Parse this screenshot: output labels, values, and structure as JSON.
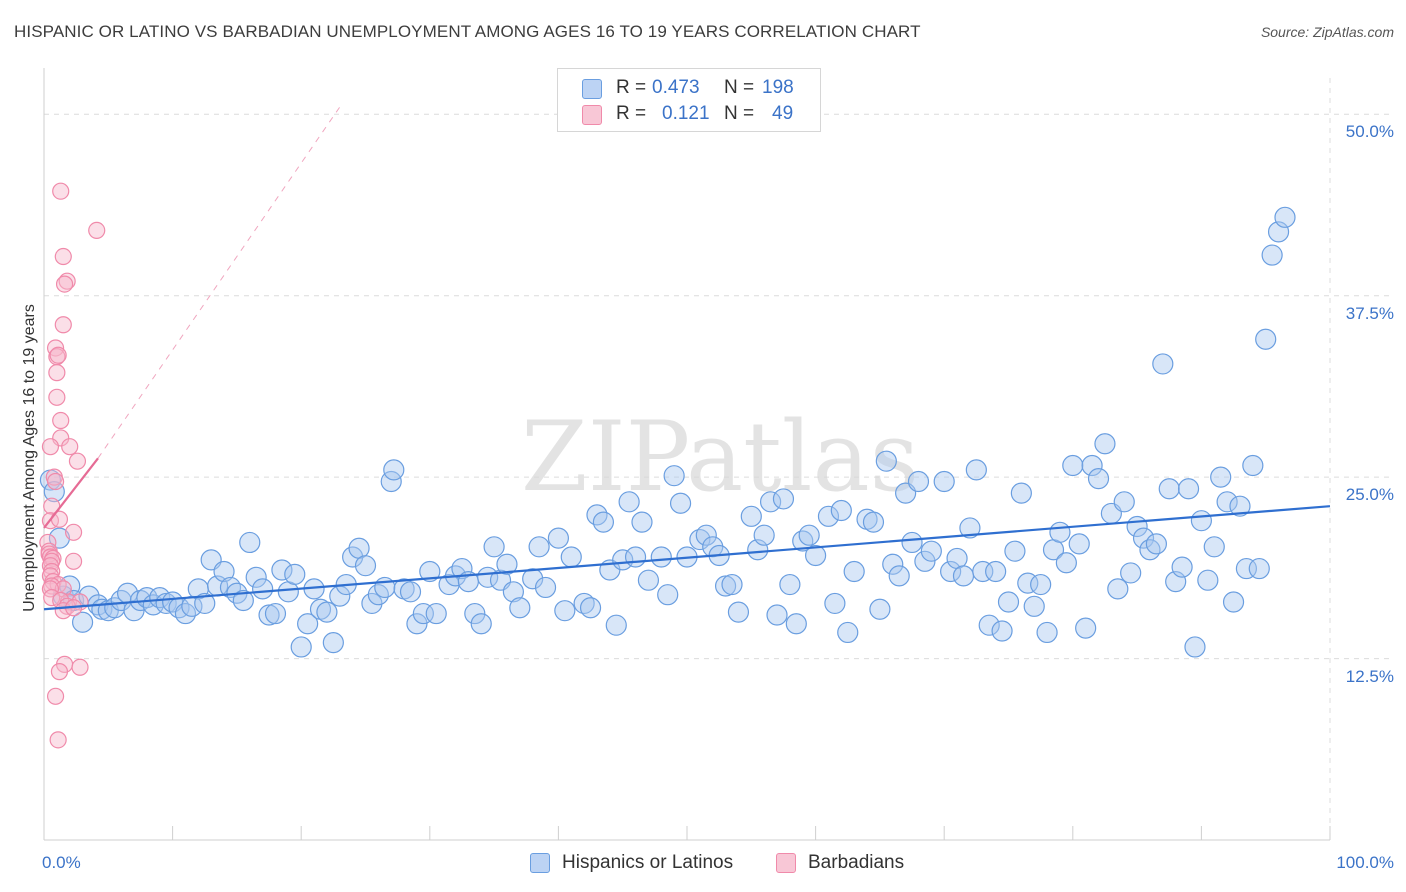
{
  "title": "HISPANIC OR LATINO VS BARBADIAN UNEMPLOYMENT AMONG AGES 16 TO 19 YEARS CORRELATION CHART",
  "source": "Source: ZipAtlas.com",
  "watermark": "ZIPatlas",
  "legend_top": {
    "rows": [
      {
        "r_label": "R =",
        "r_value": "0.473",
        "n_label": "N =",
        "n_value": "198",
        "color": "#a9c8f0"
      },
      {
        "r_label": "R =",
        "r_value": "0.121",
        "n_label": "N =",
        "n_value": "49",
        "color": "#f6b8cb"
      }
    ]
  },
  "legend_bottom": {
    "items": [
      {
        "label": "Hispanics or Latinos",
        "color": "#a9c8f0"
      },
      {
        "label": "Barbadians",
        "color": "#f6b8cb"
      }
    ]
  },
  "chart_data": {
    "type": "scatter",
    "title": "HISPANIC OR LATINO VS BARBADIAN UNEMPLOYMENT AMONG AGES 16 TO 19 YEARS CORRELATION CHART",
    "xlabel": "",
    "ylabel": "Unemployment Among Ages 16 to 19 years",
    "xlim": [
      0,
      100
    ],
    "ylim": [
      0,
      52.5
    ],
    "x_tick_labels": [
      "0.0%",
      "100.0%"
    ],
    "y_ticks": [
      12.5,
      25.0,
      37.5,
      50.0
    ],
    "y_tick_labels": [
      "12.5%",
      "25.0%",
      "37.5%",
      "50.0%"
    ],
    "grid": true,
    "legend": "top-center",
    "series": [
      {
        "name": "Hispanics or Latinos",
        "color": "#6a9ee0",
        "trend": {
          "x0": 0,
          "y0": 15.9,
          "x1": 100,
          "y1": 23.0
        },
        "points": [
          [
            0.5,
            24.8
          ],
          [
            0.8,
            24.0
          ],
          [
            1.2,
            20.8
          ],
          [
            1.5,
            16.8
          ],
          [
            2.0,
            17.5
          ],
          [
            2.3,
            16.5
          ],
          [
            3.0,
            15.0
          ],
          [
            3.5,
            16.8
          ],
          [
            4.2,
            16.2
          ],
          [
            4.5,
            15.9
          ],
          [
            5.0,
            15.8
          ],
          [
            5.5,
            16.0
          ],
          [
            6.0,
            16.5
          ],
          [
            6.5,
            17.0
          ],
          [
            7.0,
            15.8
          ],
          [
            7.5,
            16.5
          ],
          [
            8.0,
            16.7
          ],
          [
            8.5,
            16.2
          ],
          [
            9.0,
            16.7
          ],
          [
            9.5,
            16.3
          ],
          [
            10.0,
            16.4
          ],
          [
            10.5,
            16.0
          ],
          [
            11.0,
            15.6
          ],
          [
            11.5,
            16.1
          ],
          [
            12.0,
            17.3
          ],
          [
            12.5,
            16.3
          ],
          [
            13.0,
            19.3
          ],
          [
            13.5,
            17.5
          ],
          [
            14.0,
            18.5
          ],
          [
            14.5,
            17.4
          ],
          [
            15.0,
            17.0
          ],
          [
            15.5,
            16.5
          ],
          [
            16.0,
            20.5
          ],
          [
            16.5,
            18.1
          ],
          [
            17.0,
            17.3
          ],
          [
            17.5,
            15.5
          ],
          [
            18.0,
            15.6
          ],
          [
            18.5,
            18.6
          ],
          [
            19.0,
            17.1
          ],
          [
            19.5,
            18.3
          ],
          [
            20.0,
            13.3
          ],
          [
            20.5,
            14.9
          ],
          [
            21.0,
            17.3
          ],
          [
            21.5,
            15.9
          ],
          [
            22.0,
            15.7
          ],
          [
            22.5,
            13.6
          ],
          [
            23.0,
            16.8
          ],
          [
            23.5,
            17.6
          ],
          [
            24.0,
            19.5
          ],
          [
            24.5,
            20.1
          ],
          [
            25.0,
            18.9
          ],
          [
            25.5,
            16.3
          ],
          [
            26.0,
            16.9
          ],
          [
            26.5,
            17.4
          ],
          [
            27.0,
            24.7
          ],
          [
            27.2,
            25.5
          ],
          [
            28.0,
            17.3
          ],
          [
            28.5,
            17.1
          ],
          [
            29.0,
            14.9
          ],
          [
            29.5,
            15.6
          ],
          [
            30.0,
            18.5
          ],
          [
            30.5,
            15.6
          ],
          [
            31.5,
            17.6
          ],
          [
            32.0,
            18.2
          ],
          [
            32.5,
            18.7
          ],
          [
            33.0,
            17.8
          ],
          [
            33.5,
            15.6
          ],
          [
            34.0,
            14.9
          ],
          [
            34.5,
            18.1
          ],
          [
            35.0,
            20.2
          ],
          [
            35.5,
            17.9
          ],
          [
            36.0,
            19.0
          ],
          [
            36.5,
            17.1
          ],
          [
            37.0,
            16.0
          ],
          [
            38.0,
            18.0
          ],
          [
            38.5,
            20.2
          ],
          [
            39.0,
            17.4
          ],
          [
            40.0,
            20.8
          ],
          [
            40.5,
            15.8
          ],
          [
            41.0,
            19.5
          ],
          [
            42.0,
            16.3
          ],
          [
            42.5,
            16.0
          ],
          [
            43.0,
            22.4
          ],
          [
            43.5,
            21.9
          ],
          [
            44.0,
            18.6
          ],
          [
            44.5,
            14.8
          ],
          [
            45.0,
            19.3
          ],
          [
            45.5,
            23.3
          ],
          [
            46.0,
            19.5
          ],
          [
            46.5,
            21.9
          ],
          [
            47.0,
            17.9
          ],
          [
            48.0,
            19.5
          ],
          [
            48.5,
            16.9
          ],
          [
            49.0,
            25.1
          ],
          [
            49.5,
            23.2
          ],
          [
            50.0,
            19.5
          ],
          [
            51.0,
            20.7
          ],
          [
            51.5,
            21.0
          ],
          [
            52.0,
            20.2
          ],
          [
            52.5,
            19.6
          ],
          [
            53.0,
            17.5
          ],
          [
            53.5,
            17.6
          ],
          [
            54.0,
            15.7
          ],
          [
            55.0,
            22.3
          ],
          [
            55.5,
            20.0
          ],
          [
            56.0,
            21.0
          ],
          [
            56.5,
            23.3
          ],
          [
            57.0,
            15.5
          ],
          [
            57.5,
            23.5
          ],
          [
            58.0,
            17.6
          ],
          [
            58.5,
            14.9
          ],
          [
            59.0,
            20.6
          ],
          [
            59.5,
            21.0
          ],
          [
            60.0,
            19.6
          ],
          [
            61.0,
            22.3
          ],
          [
            61.5,
            16.3
          ],
          [
            62.0,
            22.7
          ],
          [
            62.5,
            14.3
          ],
          [
            63.0,
            18.5
          ],
          [
            64.0,
            22.1
          ],
          [
            64.5,
            21.9
          ],
          [
            65.0,
            15.9
          ],
          [
            65.5,
            26.1
          ],
          [
            66.0,
            19.0
          ],
          [
            66.5,
            18.2
          ],
          [
            67.0,
            23.9
          ],
          [
            67.5,
            20.5
          ],
          [
            68.0,
            24.7
          ],
          [
            68.5,
            19.2
          ],
          [
            69.0,
            19.9
          ],
          [
            70.0,
            24.7
          ],
          [
            70.5,
            18.5
          ],
          [
            71.0,
            19.4
          ],
          [
            71.5,
            18.2
          ],
          [
            72.0,
            21.5
          ],
          [
            72.5,
            25.5
          ],
          [
            73.0,
            18.5
          ],
          [
            73.5,
            14.8
          ],
          [
            74.0,
            18.5
          ],
          [
            74.5,
            14.4
          ],
          [
            75.0,
            16.4
          ],
          [
            75.5,
            19.9
          ],
          [
            76.0,
            23.9
          ],
          [
            76.5,
            17.7
          ],
          [
            77.0,
            16.1
          ],
          [
            77.5,
            17.6
          ],
          [
            78.0,
            14.3
          ],
          [
            78.5,
            20.0
          ],
          [
            79.0,
            21.2
          ],
          [
            79.5,
            19.1
          ],
          [
            80.0,
            25.8
          ],
          [
            80.5,
            20.4
          ],
          [
            81.0,
            14.6
          ],
          [
            81.5,
            25.8
          ],
          [
            82.0,
            24.9
          ],
          [
            82.5,
            27.3
          ],
          [
            83.0,
            22.5
          ],
          [
            83.5,
            17.3
          ],
          [
            84.0,
            23.3
          ],
          [
            84.5,
            18.4
          ],
          [
            85.0,
            21.6
          ],
          [
            85.5,
            20.8
          ],
          [
            86.0,
            20.0
          ],
          [
            86.5,
            20.4
          ],
          [
            87.0,
            32.8
          ],
          [
            87.5,
            24.2
          ],
          [
            88.0,
            17.8
          ],
          [
            88.5,
            18.8
          ],
          [
            89.0,
            24.2
          ],
          [
            89.5,
            13.3
          ],
          [
            90.0,
            22.0
          ],
          [
            90.5,
            17.9
          ],
          [
            91.0,
            20.2
          ],
          [
            91.5,
            25.0
          ],
          [
            92.0,
            23.3
          ],
          [
            92.5,
            16.4
          ],
          [
            93.0,
            23.0
          ],
          [
            93.5,
            18.7
          ],
          [
            94.0,
            25.8
          ],
          [
            94.5,
            18.7
          ],
          [
            95.0,
            34.5
          ],
          [
            95.5,
            40.3
          ],
          [
            96.0,
            41.9
          ],
          [
            96.5,
            42.9
          ]
        ]
      },
      {
        "name": "Barbadians",
        "color": "#f08aaa",
        "trend": {
          "x0": 0,
          "y0": 21.5,
          "x1": 4.2,
          "y1": 26.3
        },
        "trend_extended": {
          "x0": 4.2,
          "y0": 26.3,
          "x1": 23.0,
          "y1": 50.5
        },
        "points": [
          [
            1.3,
            44.7
          ],
          [
            4.1,
            42.0
          ],
          [
            1.5,
            40.2
          ],
          [
            1.8,
            38.5
          ],
          [
            1.6,
            38.3
          ],
          [
            1.5,
            35.5
          ],
          [
            0.9,
            33.9
          ],
          [
            1.0,
            33.3
          ],
          [
            1.1,
            33.4
          ],
          [
            1.0,
            32.2
          ],
          [
            1.0,
            30.5
          ],
          [
            1.3,
            28.9
          ],
          [
            1.3,
            27.7
          ],
          [
            0.5,
            27.1
          ],
          [
            2.0,
            27.1
          ],
          [
            2.6,
            26.1
          ],
          [
            0.8,
            25.0
          ],
          [
            0.9,
            24.7
          ],
          [
            0.6,
            23.0
          ],
          [
            0.5,
            22.0
          ],
          [
            1.2,
            22.1
          ],
          [
            2.3,
            21.2
          ],
          [
            0.3,
            20.5
          ],
          [
            0.4,
            19.9
          ],
          [
            0.4,
            19.7
          ],
          [
            0.5,
            19.5
          ],
          [
            0.7,
            19.4
          ],
          [
            0.6,
            19.2
          ],
          [
            0.5,
            18.9
          ],
          [
            2.3,
            19.2
          ],
          [
            0.6,
            18.5
          ],
          [
            0.5,
            18.2
          ],
          [
            0.7,
            17.8
          ],
          [
            1.1,
            17.6
          ],
          [
            0.6,
            17.5
          ],
          [
            1.5,
            17.3
          ],
          [
            0.5,
            17.3
          ],
          [
            0.6,
            16.7
          ],
          [
            1.9,
            16.4
          ],
          [
            1.3,
            16.5
          ],
          [
            2.8,
            16.4
          ],
          [
            1.8,
            16.1
          ],
          [
            1.5,
            15.8
          ],
          [
            2.3,
            16.0
          ],
          [
            1.6,
            12.1
          ],
          [
            2.8,
            11.9
          ],
          [
            1.2,
            11.6
          ],
          [
            0.9,
            9.9
          ],
          [
            1.1,
            6.9
          ]
        ]
      }
    ]
  }
}
